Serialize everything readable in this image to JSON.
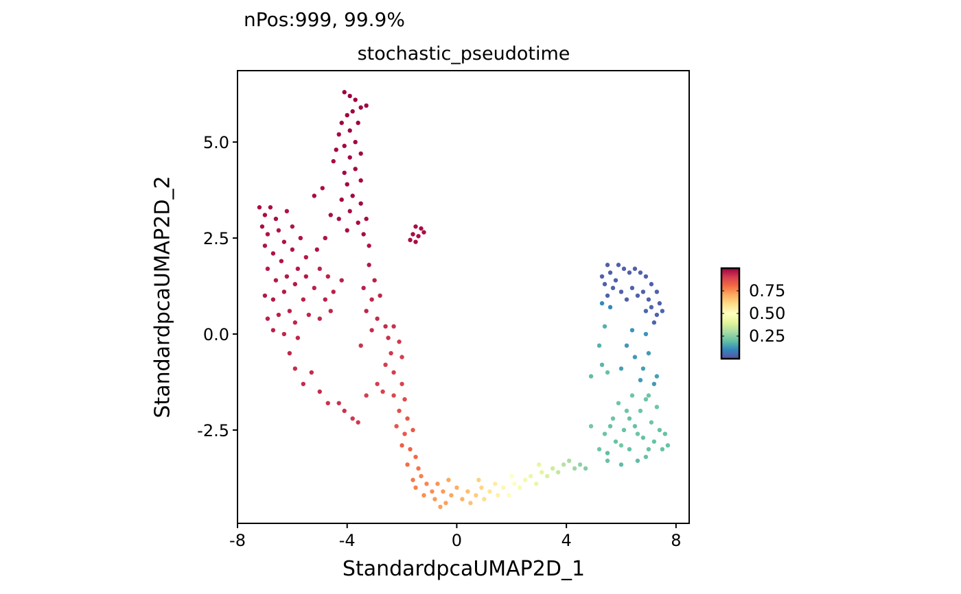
{
  "chart_data": {
    "type": "scatter",
    "subtitle": "nPos:999, 99.9%",
    "title": "stochastic_pseudotime",
    "xlabel": "StandardpcaUMAP2D_1",
    "ylabel": "StandardpcaUMAP2D_2",
    "xlim": [
      -8,
      8.48
    ],
    "ylim": [
      -4.93,
      6.86
    ],
    "xticks": [
      -8,
      -4,
      0,
      4,
      8
    ],
    "xtick_labels": [
      "-8",
      "-4",
      "0",
      "4",
      "8"
    ],
    "yticks": [
      5.0,
      2.5,
      0.0,
      -2.5
    ],
    "ytick_labels": [
      "5.0",
      "2.5",
      "0.0",
      "-2.5"
    ],
    "grid": false,
    "legend": {
      "type": "colorbar",
      "placement": "right",
      "range": [
        0,
        1
      ],
      "ticks": [
        0.75,
        0.5,
        0.25
      ],
      "tick_labels": [
        "0.75",
        "0.50",
        "0.25"
      ],
      "colormap": [
        "#5E4FA2",
        "#3288BD",
        "#66C2A5",
        "#ABDDA4",
        "#E6F598",
        "#FFFFBF",
        "#FEE08B",
        "#FDAE61",
        "#F46D43",
        "#D53E4F",
        "#9E0142"
      ]
    },
    "points_format": [
      "x",
      "y",
      "pseudotime"
    ],
    "points": [
      [
        -4.1,
        6.3,
        1
      ],
      [
        -3.9,
        6.2,
        1
      ],
      [
        -3.7,
        6.1,
        1
      ],
      [
        -3.5,
        5.9,
        1
      ],
      [
        -3.8,
        5.8,
        1
      ],
      [
        -4.0,
        5.7,
        1
      ],
      [
        -3.6,
        5.5,
        1
      ],
      [
        -3.3,
        5.95,
        1
      ],
      [
        -4.2,
        5.5,
        1
      ],
      [
        -3.9,
        5.3,
        1
      ],
      [
        -4.3,
        5.2,
        0.99
      ],
      [
        -3.7,
        5.0,
        0.99
      ],
      [
        -4.1,
        4.9,
        0.99
      ],
      [
        -3.5,
        4.7,
        0.99
      ],
      [
        -3.9,
        4.6,
        0.99
      ],
      [
        -4.4,
        4.8,
        0.99
      ],
      [
        -3.7,
        4.3,
        0.99
      ],
      [
        -4.1,
        4.2,
        0.99
      ],
      [
        -3.5,
        4.0,
        0.99
      ],
      [
        -4.0,
        3.9,
        0.99
      ],
      [
        -3.8,
        3.6,
        0.99
      ],
      [
        -4.2,
        3.5,
        0.99
      ],
      [
        -3.5,
        3.4,
        0.99
      ],
      [
        -3.9,
        3.2,
        0.98
      ],
      [
        -4.3,
        3.0,
        0.98
      ],
      [
        -3.6,
        2.9,
        0.98
      ],
      [
        -4.0,
        2.7,
        0.98
      ],
      [
        -3.4,
        2.6,
        0.98
      ],
      [
        -4.5,
        4.5,
        0.98
      ],
      [
        -4.9,
        3.8,
        0.98
      ],
      [
        -5.2,
        3.6,
        0.98
      ],
      [
        -4.6,
        3.1,
        0.98
      ],
      [
        -4.8,
        2.5,
        0.97
      ],
      [
        -5.1,
        2.2,
        0.97
      ],
      [
        -3.3,
        3.0,
        0.98
      ],
      [
        -3.2,
        2.3,
        0.97
      ],
      [
        -7.2,
        3.3,
        0.98
      ],
      [
        -7.0,
        3.1,
        0.98
      ],
      [
        -6.8,
        3.3,
        0.98
      ],
      [
        -6.6,
        3.0,
        0.98
      ],
      [
        -7.1,
        2.8,
        0.98
      ],
      [
        -6.9,
        2.6,
        0.97
      ],
      [
        -6.5,
        2.7,
        0.97
      ],
      [
        -6.2,
        3.2,
        0.97
      ],
      [
        -6.0,
        2.8,
        0.97
      ],
      [
        -6.3,
        2.4,
        0.97
      ],
      [
        -7.0,
        2.3,
        0.97
      ],
      [
        -6.7,
        2.1,
        0.97
      ],
      [
        -6.4,
        1.9,
        0.97
      ],
      [
        -6.0,
        2.2,
        0.97
      ],
      [
        -5.7,
        2.5,
        0.97
      ],
      [
        -5.5,
        2.0,
        0.96
      ],
      [
        -5.8,
        1.7,
        0.96
      ],
      [
        -6.2,
        1.5,
        0.96
      ],
      [
        -6.6,
        1.4,
        0.96
      ],
      [
        -6.9,
        1.7,
        0.96
      ],
      [
        -7.0,
        1.0,
        0.96
      ],
      [
        -6.7,
        0.9,
        0.96
      ],
      [
        -6.3,
        1.1,
        0.96
      ],
      [
        -5.9,
        1.3,
        0.96
      ],
      [
        -5.5,
        1.5,
        0.96
      ],
      [
        -5.2,
        1.2,
        0.95
      ],
      [
        -5.0,
        1.7,
        0.95
      ],
      [
        -4.7,
        1.5,
        0.95
      ],
      [
        -4.5,
        1.1,
        0.95
      ],
      [
        -4.2,
        1.4,
        0.95
      ],
      [
        -4.8,
        0.9,
        0.95
      ],
      [
        -5.6,
        0.9,
        0.95
      ],
      [
        -6.1,
        0.6,
        0.95
      ],
      [
        -6.5,
        0.5,
        0.95
      ],
      [
        -6.9,
        0.4,
        0.95
      ],
      [
        -6.7,
        0.1,
        0.95
      ],
      [
        -6.3,
        0.0,
        0.94
      ],
      [
        -5.9,
        0.3,
        0.94
      ],
      [
        -5.4,
        0.5,
        0.94
      ],
      [
        -5.0,
        0.4,
        0.94
      ],
      [
        -4.6,
        0.6,
        0.94
      ],
      [
        -5.8,
        -0.1,
        0.94
      ],
      [
        -6.1,
        -0.5,
        0.94
      ],
      [
        -5.9,
        -0.9,
        0.93
      ],
      [
        -5.6,
        -1.3,
        0.93
      ],
      [
        -5.3,
        -1.0,
        0.93
      ],
      [
        -5.0,
        -1.5,
        0.93
      ],
      [
        -4.7,
        -1.8,
        0.92
      ],
      [
        -4.3,
        -1.8,
        0.92
      ],
      [
        -4.1,
        -2.0,
        0.92
      ],
      [
        -3.8,
        -2.2,
        0.91
      ],
      [
        -3.6,
        -2.3,
        0.91
      ],
      [
        -1.5,
        2.8,
        0.98
      ],
      [
        -1.3,
        2.75,
        0.98
      ],
      [
        -1.6,
        2.6,
        0.98
      ],
      [
        -1.4,
        2.55,
        0.98
      ],
      [
        -1.2,
        2.65,
        0.98
      ],
      [
        -1.7,
        2.45,
        0.98
      ],
      [
        -1.5,
        2.4,
        0.98
      ],
      [
        -3.2,
        1.8,
        0.96
      ],
      [
        -3.0,
        1.4,
        0.95
      ],
      [
        -3.4,
        1.2,
        0.95
      ],
      [
        -3.1,
        0.9,
        0.94
      ],
      [
        -2.8,
        1.0,
        0.94
      ],
      [
        -3.3,
        0.6,
        0.94
      ],
      [
        -2.9,
        0.4,
        0.93
      ],
      [
        -2.6,
        0.2,
        0.93
      ],
      [
        -3.1,
        0.1,
        0.93
      ],
      [
        -2.5,
        -0.1,
        0.92
      ],
      [
        -2.3,
        0.2,
        0.92
      ],
      [
        -2.1,
        -0.2,
        0.91
      ],
      [
        -2.4,
        -0.5,
        0.91
      ],
      [
        -2.0,
        -0.6,
        0.9
      ],
      [
        -2.3,
        -1.0,
        0.9
      ],
      [
        -2.6,
        -0.8,
        0.9
      ],
      [
        -2.0,
        -1.3,
        0.89
      ],
      [
        -2.3,
        -1.6,
        0.88
      ],
      [
        -1.9,
        -1.7,
        0.87
      ],
      [
        -2.1,
        -2.0,
        0.86
      ],
      [
        -1.8,
        -2.2,
        0.85
      ],
      [
        -2.2,
        -2.4,
        0.85
      ],
      [
        -1.9,
        -2.6,
        0.84
      ],
      [
        -1.6,
        -2.5,
        0.84
      ],
      [
        -2.0,
        -2.9,
        0.83
      ],
      [
        -1.7,
        -3.0,
        0.82
      ],
      [
        -1.5,
        -3.2,
        0.81
      ],
      [
        -1.8,
        -3.4,
        0.8
      ],
      [
        -1.4,
        -3.5,
        0.79
      ],
      [
        -2.9,
        -1.3,
        0.9
      ],
      [
        -2.7,
        -1.5,
        0.89
      ],
      [
        -3.5,
        -0.3,
        0.92
      ],
      [
        -3.3,
        -1.6,
        0.9
      ],
      [
        -1.6,
        -3.8,
        0.78
      ],
      [
        -1.3,
        -3.7,
        0.77
      ],
      [
        -1.1,
        -3.9,
        0.76
      ],
      [
        -1.5,
        -4.0,
        0.77
      ],
      [
        -0.9,
        -4.1,
        0.75
      ],
      [
        -1.2,
        -4.2,
        0.75
      ],
      [
        -0.7,
        -3.9,
        0.74
      ],
      [
        -0.5,
        -4.1,
        0.73
      ],
      [
        -0.8,
        -4.3,
        0.73
      ],
      [
        -0.4,
        -4.4,
        0.72
      ],
      [
        -0.6,
        -4.5,
        0.72
      ],
      [
        -0.2,
        -4.2,
        0.71
      ],
      [
        0.0,
        -4.0,
        0.7
      ],
      [
        0.2,
        -4.3,
        0.69
      ],
      [
        0.4,
        -4.1,
        0.67
      ],
      [
        0.5,
        -4.4,
        0.66
      ],
      [
        0.7,
        -4.2,
        0.64
      ],
      [
        0.9,
        -4.0,
        0.62
      ],
      [
        1.0,
        -4.3,
        0.6
      ],
      [
        1.2,
        -4.1,
        0.58
      ],
      [
        1.4,
        -3.9,
        0.56
      ],
      [
        1.5,
        -4.2,
        0.55
      ],
      [
        1.7,
        -4.0,
        0.53
      ],
      [
        1.9,
        -4.2,
        0.51
      ],
      [
        2.1,
        -3.9,
        0.49
      ],
      [
        2.3,
        -4.0,
        0.47
      ],
      [
        2.5,
        -3.8,
        0.45
      ],
      [
        2.7,
        -3.7,
        0.43
      ],
      [
        2.9,
        -3.9,
        0.42
      ],
      [
        3.1,
        -3.6,
        0.4
      ],
      [
        3.3,
        -3.7,
        0.38
      ],
      [
        3.5,
        -3.5,
        0.36
      ],
      [
        3.7,
        -3.6,
        0.34
      ],
      [
        3.9,
        -3.4,
        0.32
      ],
      [
        4.1,
        -3.3,
        0.3
      ],
      [
        4.3,
        -3.5,
        0.28
      ],
      [
        4.5,
        -3.4,
        0.26
      ],
      [
        4.7,
        -3.5,
        0.24
      ],
      [
        -0.3,
        -3.8,
        0.71
      ],
      [
        0.8,
        -3.8,
        0.63
      ],
      [
        2.0,
        -3.7,
        0.5
      ],
      [
        3.0,
        -3.4,
        0.41
      ],
      [
        4.9,
        -2.4,
        0.22
      ],
      [
        5.2,
        -3.0,
        0.21
      ],
      [
        5.4,
        -2.6,
        0.21
      ],
      [
        5.5,
        -3.3,
        0.2
      ],
      [
        5.7,
        -2.2,
        0.21
      ],
      [
        5.8,
        -2.8,
        0.2
      ],
      [
        5.9,
        -1.8,
        0.21
      ],
      [
        6.0,
        -3.4,
        0.19
      ],
      [
        6.1,
        -2.5,
        0.2
      ],
      [
        6.2,
        -2.0,
        0.21
      ],
      [
        6.3,
        -3.0,
        0.2
      ],
      [
        6.4,
        -1.6,
        0.21
      ],
      [
        6.5,
        -2.4,
        0.2
      ],
      [
        6.6,
        -3.3,
        0.19
      ],
      [
        6.7,
        -2.0,
        0.21
      ],
      [
        6.8,
        -2.7,
        0.2
      ],
      [
        6.9,
        -1.7,
        0.21
      ],
      [
        7.0,
        -3.0,
        0.2
      ],
      [
        7.1,
        -2.3,
        0.21
      ],
      [
        7.2,
        -2.8,
        0.2
      ],
      [
        7.3,
        -1.9,
        0.21
      ],
      [
        7.4,
        -2.5,
        0.2
      ],
      [
        7.5,
        -3.0,
        0.2
      ],
      [
        7.6,
        -2.6,
        0.2
      ],
      [
        7.7,
        -2.9,
        0.2
      ],
      [
        6.0,
        -2.9,
        0.22
      ],
      [
        6.6,
        -2.6,
        0.21
      ],
      [
        5.6,
        -2.4,
        0.2
      ],
      [
        7.0,
        -1.6,
        0.21
      ],
      [
        6.3,
        -2.2,
        0.2
      ],
      [
        5.5,
        -3.1,
        0.19
      ],
      [
        6.9,
        -3.2,
        0.2
      ],
      [
        5.2,
        -0.3,
        0.17
      ],
      [
        5.4,
        0.2,
        0.17
      ],
      [
        5.3,
        -0.8,
        0.18
      ],
      [
        5.5,
        -1.0,
        0.2
      ],
      [
        4.9,
        -1.1,
        0.19
      ],
      [
        6.2,
        -0.3,
        0.13
      ],
      [
        6.4,
        0.1,
        0.12
      ],
      [
        6.5,
        -0.6,
        0.13
      ],
      [
        6.8,
        -0.9,
        0.14
      ],
      [
        7.0,
        -0.5,
        0.13
      ],
      [
        6.7,
        -1.2,
        0.13
      ],
      [
        7.3,
        -1.1,
        0.14
      ],
      [
        7.2,
        -1.3,
        0.13
      ],
      [
        6.0,
        -0.9,
        0.14
      ],
      [
        6.9,
        0.0,
        0.12
      ],
      [
        5.3,
        0.8,
        0.1
      ],
      [
        5.6,
        0.7,
        0.1
      ],
      [
        5.3,
        1.5,
        0.03
      ],
      [
        5.5,
        1.8,
        0.03
      ],
      [
        5.6,
        1.6,
        0.03
      ],
      [
        5.4,
        1.3,
        0.03
      ],
      [
        5.7,
        1.2,
        0.03
      ],
      [
        5.9,
        1.8,
        0.03
      ],
      [
        6.1,
        1.7,
        0.03
      ],
      [
        6.3,
        1.6,
        0.03
      ],
      [
        6.5,
        1.7,
        0.03
      ],
      [
        6.7,
        1.6,
        0.03
      ],
      [
        6.9,
        1.5,
        0.03
      ],
      [
        7.1,
        1.3,
        0.03
      ],
      [
        7.3,
        1.1,
        0.03
      ],
      [
        7.4,
        0.8,
        0.03
      ],
      [
        7.3,
        0.5,
        0.03
      ],
      [
        7.0,
        0.9,
        0.03
      ],
      [
        6.8,
        1.1,
        0.03
      ],
      [
        6.6,
        1.0,
        0.03
      ],
      [
        6.4,
        1.2,
        0.03
      ],
      [
        6.2,
        0.9,
        0.03
      ],
      [
        6.0,
        1.1,
        0.03
      ],
      [
        5.8,
        1.4,
        0.03
      ],
      [
        7.2,
        0.3,
        0.04
      ],
      [
        7.5,
        0.6,
        0.04
      ],
      [
        6.9,
        0.6,
        0.04
      ],
      [
        7.1,
        0.7,
        0.04
      ],
      [
        5.5,
        1.0,
        0.03
      ]
    ]
  }
}
